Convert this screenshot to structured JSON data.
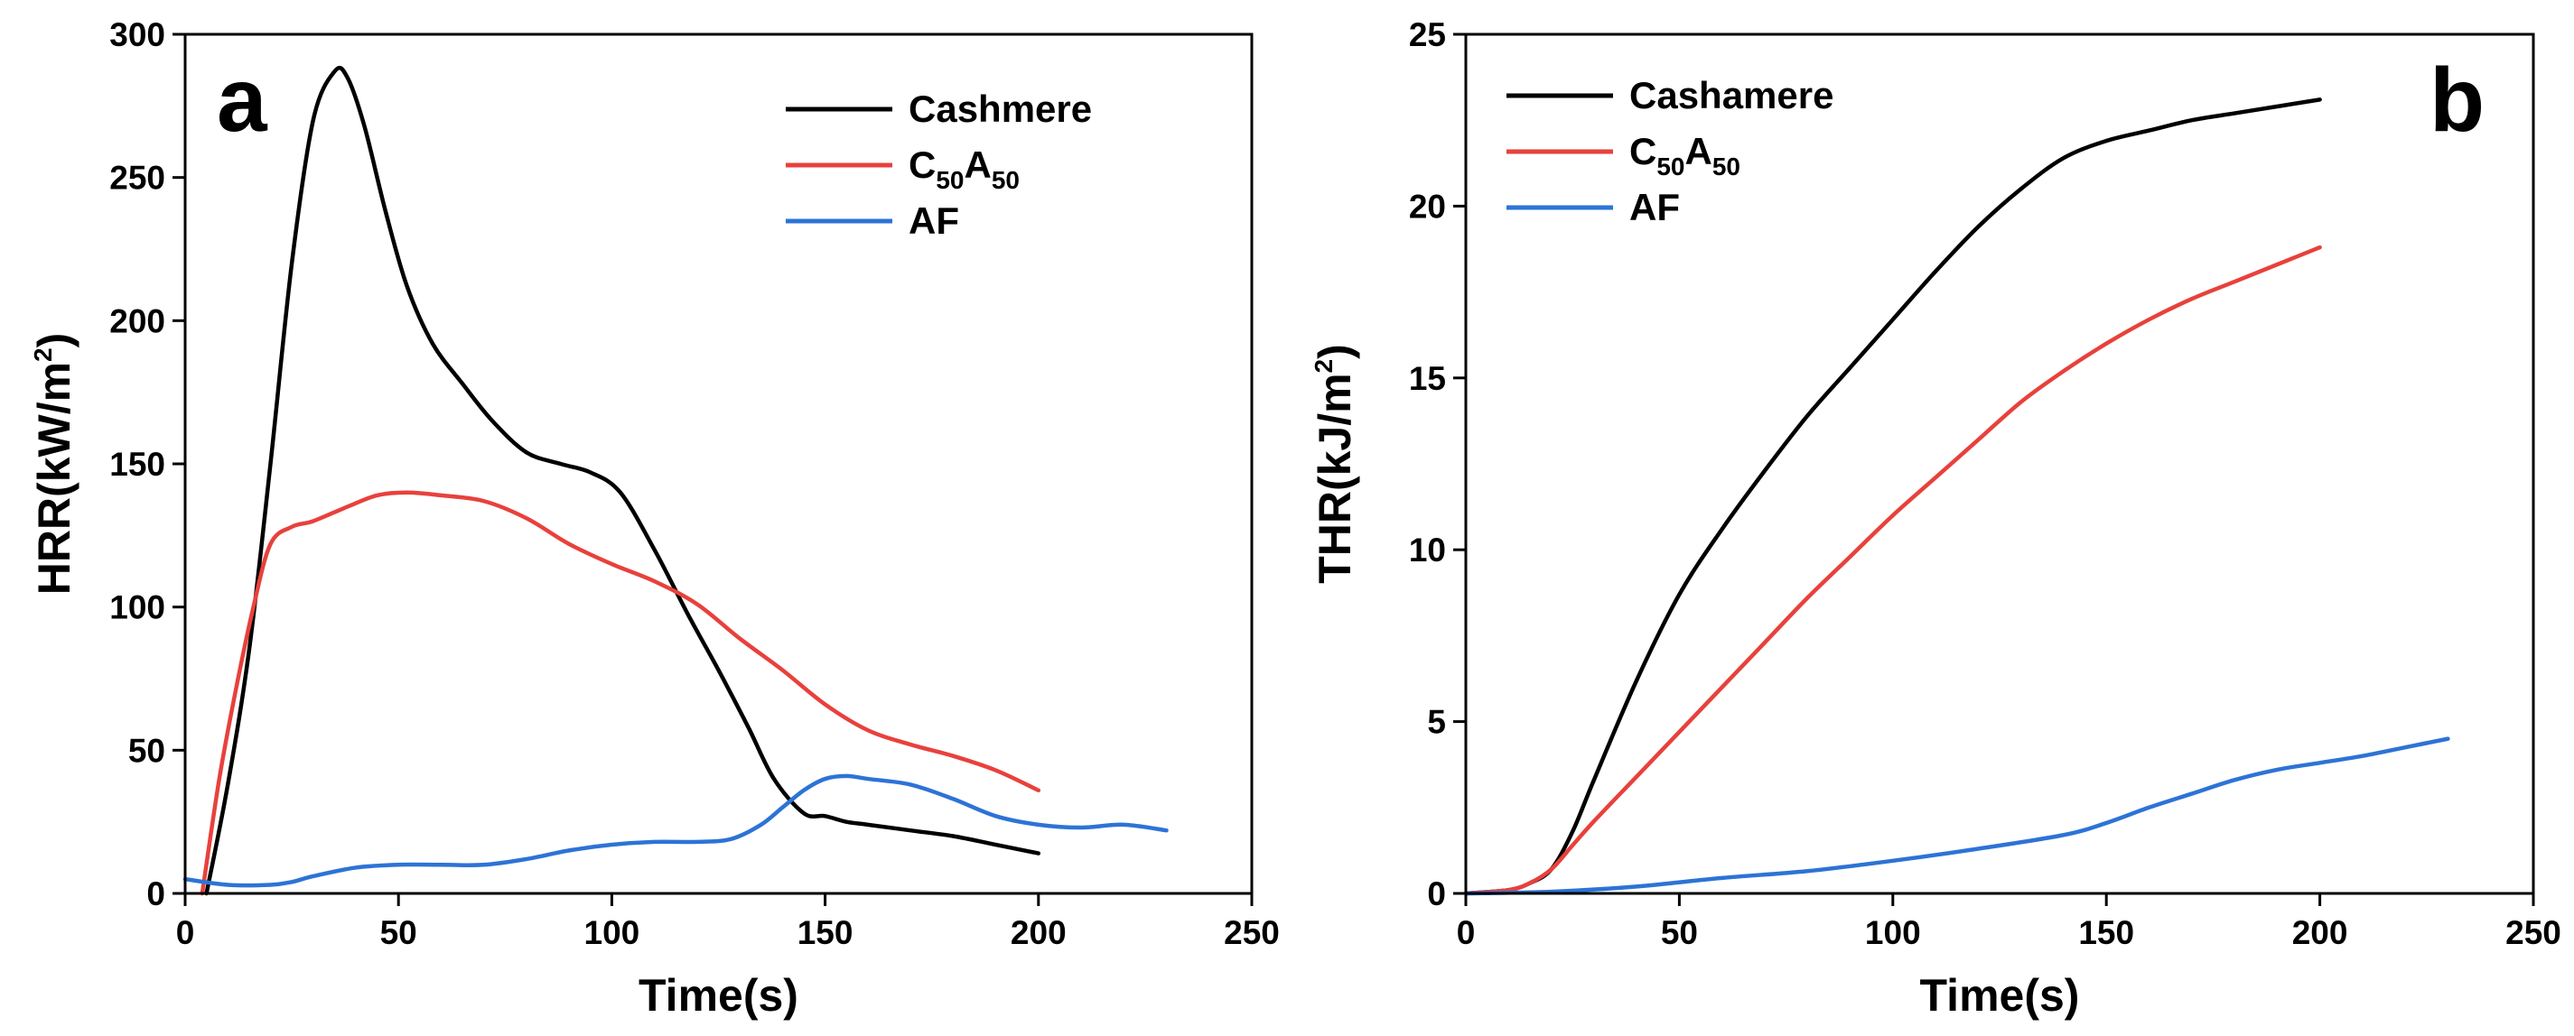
{
  "chart_data": [
    {
      "panel_label": "a",
      "type": "line",
      "title": "",
      "xlabel": "Time(s)",
      "ylabel": "HRR(kW/m",
      "ylabel_sup": "2",
      "ylabel_close": ")",
      "xlim": [
        0,
        250
      ],
      "ylim": [
        0,
        300
      ],
      "xticks": [
        0,
        50,
        100,
        150,
        200,
        250
      ],
      "yticks": [
        0,
        50,
        100,
        150,
        200,
        250,
        300
      ],
      "grid": false,
      "legend_position": "top-right",
      "series": [
        {
          "name": "Cashmere",
          "color": "#000000",
          "x": [
            5,
            10,
            15,
            20,
            25,
            30,
            35,
            38,
            42,
            47,
            52,
            58,
            65,
            72,
            80,
            88,
            95,
            102,
            110,
            118,
            125,
            132,
            138,
            145,
            150,
            155,
            160,
            170,
            180,
            190,
            200
          ],
          "y": [
            0,
            38,
            85,
            150,
            220,
            270,
            287,
            285,
            268,
            238,
            212,
            192,
            178,
            165,
            154,
            150,
            147,
            140,
            120,
            97,
            78,
            58,
            40,
            28,
            27,
            25,
            24,
            22,
            20,
            17,
            14
          ]
        },
        {
          "name": "C50A50",
          "label_main": "C",
          "label_sub1": "50",
          "label_mid": "A",
          "label_sub2": "50",
          "color": "#e8413c",
          "x": [
            4,
            8,
            12,
            16,
            20,
            25,
            30,
            38,
            45,
            52,
            60,
            70,
            80,
            90,
            100,
            110,
            120,
            130,
            140,
            150,
            160,
            170,
            180,
            190,
            200
          ],
          "y": [
            0,
            40,
            72,
            100,
            122,
            128,
            130,
            135,
            139,
            140,
            139,
            137,
            131,
            122,
            115,
            109,
            101,
            89,
            78,
            66,
            57,
            52,
            48,
            43,
            36
          ]
        },
        {
          "name": "AF",
          "color": "#2d73d6",
          "x": [
            0,
            10,
            20,
            25,
            30,
            40,
            50,
            60,
            70,
            80,
            90,
            100,
            110,
            120,
            128,
            135,
            140,
            145,
            150,
            155,
            160,
            170,
            180,
            190,
            200,
            210,
            220,
            230
          ],
          "y": [
            5,
            3,
            3,
            4,
            6,
            9,
            10,
            10,
            10,
            12,
            15,
            17,
            18,
            18,
            19,
            24,
            30,
            36,
            40,
            41,
            40,
            38,
            33,
            27,
            24,
            23,
            24,
            22
          ]
        }
      ]
    },
    {
      "panel_label": "b",
      "type": "line",
      "title": "",
      "xlabel": "Time(s)",
      "ylabel": "THR(kJ/m",
      "ylabel_sup": "2",
      "ylabel_close": ")",
      "xlim": [
        0,
        250
      ],
      "ylim": [
        0,
        25
      ],
      "xticks": [
        0,
        50,
        100,
        150,
        200,
        250
      ],
      "yticks": [
        0,
        5,
        10,
        15,
        20,
        25
      ],
      "grid": false,
      "legend_position": "top-left",
      "series": [
        {
          "name": "Cashamere",
          "color": "#000000",
          "x": [
            0,
            10,
            15,
            20,
            25,
            30,
            40,
            50,
            60,
            70,
            80,
            90,
            100,
            110,
            120,
            130,
            140,
            150,
            160,
            170,
            180,
            190,
            200
          ],
          "y": [
            0,
            0.1,
            0.3,
            0.7,
            1.8,
            3.3,
            6.2,
            8.7,
            10.6,
            12.3,
            13.9,
            15.3,
            16.7,
            18.1,
            19.4,
            20.5,
            21.4,
            21.9,
            22.2,
            22.5,
            22.7,
            22.9,
            23.1
          ]
        },
        {
          "name": "C50A50",
          "label_main": "C",
          "label_sub1": "50",
          "label_mid": "A",
          "label_sub2": "50",
          "color": "#e8413c",
          "x": [
            0,
            10,
            15,
            20,
            25,
            30,
            40,
            50,
            60,
            70,
            80,
            90,
            100,
            110,
            120,
            130,
            140,
            150,
            160,
            170,
            180,
            190,
            200
          ],
          "y": [
            0,
            0.1,
            0.3,
            0.7,
            1.4,
            2.1,
            3.4,
            4.7,
            6.0,
            7.3,
            8.6,
            9.8,
            11.0,
            12.1,
            13.2,
            14.3,
            15.2,
            16.0,
            16.7,
            17.3,
            17.8,
            18.3,
            18.8
          ]
        },
        {
          "name": "AF",
          "color": "#2d73d6",
          "x": [
            0,
            20,
            40,
            60,
            80,
            100,
            120,
            140,
            150,
            160,
            170,
            180,
            190,
            200,
            210,
            220,
            230
          ],
          "y": [
            0,
            0.05,
            0.2,
            0.45,
            0.65,
            0.95,
            1.3,
            1.7,
            2.05,
            2.5,
            2.9,
            3.3,
            3.6,
            3.8,
            4.0,
            4.25,
            4.5
          ]
        }
      ]
    }
  ]
}
